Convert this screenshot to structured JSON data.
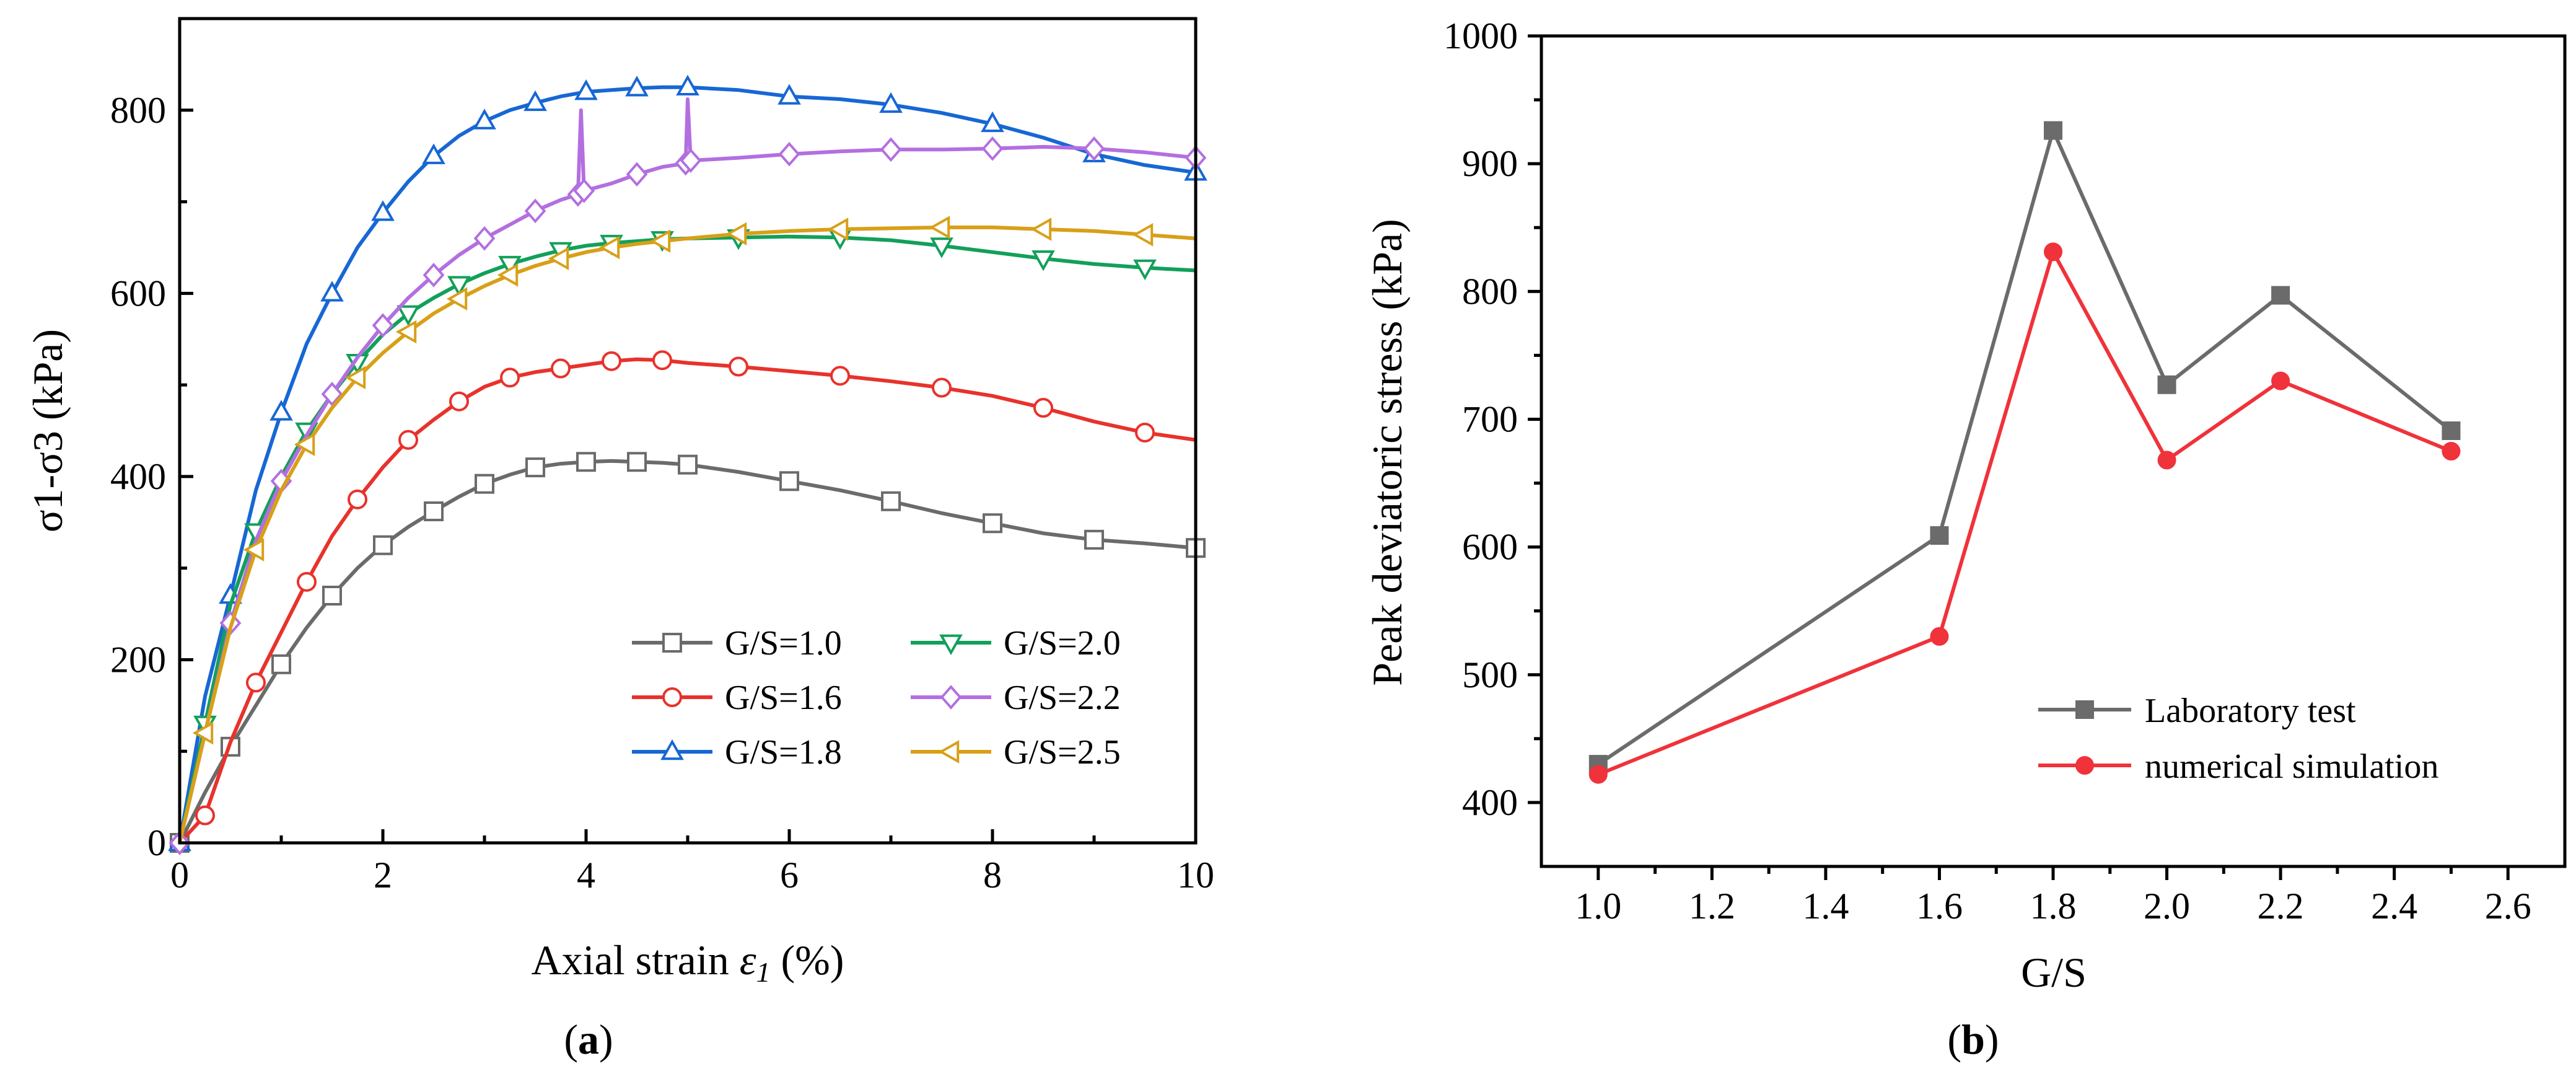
{
  "chart_data": [
    {
      "type": "line",
      "panel_label": "a",
      "title": "",
      "xlabel": "Axial strain",
      "xlabel_symbol": "ε",
      "xlabel_subscript": "1",
      "xlabel_unit": "(%)",
      "ylabel": "σ1-σ3 (kPa)",
      "xlim": [
        0,
        10
      ],
      "ylim": [
        0,
        900
      ],
      "xticks": [
        0,
        2,
        4,
        6,
        8,
        10
      ],
      "yticks": [
        0,
        200,
        400,
        600,
        800
      ],
      "legend_position": "bottom-right",
      "series": [
        {
          "name": "G/S=1.0",
          "color": "#6b6b6b",
          "marker": "square",
          "x": [
            0,
            0.25,
            0.5,
            0.75,
            1.0,
            1.25,
            1.5,
            1.75,
            2.0,
            2.25,
            2.5,
            2.75,
            3.0,
            3.25,
            3.5,
            3.75,
            4.0,
            4.25,
            4.5,
            4.75,
            5.0,
            5.5,
            6.0,
            6.5,
            7.0,
            7.5,
            8.0,
            8.5,
            9.0,
            9.5,
            10.0
          ],
          "y": [
            0,
            55,
            105,
            150,
            195,
            235,
            270,
            300,
            325,
            345,
            362,
            378,
            392,
            402,
            410,
            414,
            416,
            417,
            416,
            415,
            413,
            405,
            395,
            385,
            373,
            360,
            349,
            338,
            331,
            327,
            322
          ]
        },
        {
          "name": "G/S=1.6",
          "color": "#e8322c",
          "marker": "circle",
          "x": [
            0,
            0.25,
            0.5,
            0.75,
            1.0,
            1.25,
            1.5,
            1.75,
            2.0,
            2.25,
            2.5,
            2.75,
            3.0,
            3.25,
            3.5,
            3.75,
            4.0,
            4.25,
            4.5,
            4.75,
            5.0,
            5.5,
            6.0,
            6.5,
            7.0,
            7.5,
            8.0,
            8.5,
            9.0,
            9.5,
            10.0
          ],
          "y": [
            0,
            30,
            110,
            175,
            230,
            285,
            335,
            375,
            410,
            440,
            462,
            482,
            498,
            508,
            514,
            518,
            522,
            526,
            528,
            527,
            524,
            520,
            515,
            510,
            504,
            497,
            488,
            475,
            460,
            448,
            440
          ]
        },
        {
          "name": "G/S=1.8",
          "color": "#1767d4",
          "marker": "triangle-up",
          "x": [
            0,
            0.25,
            0.5,
            0.75,
            1.0,
            1.25,
            1.5,
            1.75,
            2.0,
            2.25,
            2.5,
            2.75,
            3.0,
            3.25,
            3.5,
            3.75,
            4.0,
            4.25,
            4.5,
            4.75,
            5.0,
            5.5,
            6.0,
            6.5,
            7.0,
            7.5,
            8.0,
            8.5,
            9.0,
            9.5,
            10.0
          ],
          "y": [
            0,
            160,
            270,
            385,
            470,
            545,
            600,
            650,
            688,
            722,
            750,
            772,
            788,
            800,
            808,
            815,
            820,
            822,
            824,
            825,
            825,
            822,
            815,
            812,
            806,
            797,
            785,
            770,
            752,
            740,
            732
          ]
        },
        {
          "name": "G/S=2.0",
          "color": "#12a05a",
          "marker": "triangle-down",
          "x": [
            0,
            0.25,
            0.5,
            0.75,
            1.0,
            1.25,
            1.5,
            1.75,
            2.0,
            2.25,
            2.5,
            2.75,
            3.0,
            3.25,
            3.5,
            3.75,
            4.0,
            4.25,
            4.5,
            4.75,
            5.0,
            5.5,
            6.0,
            6.5,
            7.0,
            7.5,
            8.0,
            8.5,
            9.0,
            9.5,
            10.0
          ],
          "y": [
            0,
            130,
            260,
            340,
            400,
            450,
            490,
            525,
            555,
            578,
            595,
            610,
            622,
            632,
            640,
            647,
            652,
            655,
            657,
            659,
            660,
            661,
            662,
            661,
            658,
            652,
            645,
            638,
            632,
            628,
            625
          ]
        },
        {
          "name": "G/S=2.2",
          "color": "#b36fe0",
          "marker": "diamond",
          "x": [
            0,
            0.25,
            0.5,
            0.75,
            1.0,
            1.25,
            1.5,
            1.75,
            2.0,
            2.25,
            2.5,
            2.75,
            3.0,
            3.25,
            3.5,
            3.75,
            3.92,
            3.95,
            3.98,
            4.25,
            4.5,
            4.75,
            4.98,
            5.0,
            5.03,
            5.5,
            6.0,
            6.5,
            7.0,
            7.5,
            8.0,
            8.5,
            9.0,
            9.5,
            10.0
          ],
          "y": [
            0,
            120,
            240,
            330,
            395,
            445,
            490,
            530,
            565,
            595,
            620,
            642,
            660,
            675,
            690,
            702,
            708,
            800,
            712,
            720,
            730,
            738,
            742,
            812,
            745,
            748,
            752,
            755,
            757,
            757,
            758,
            760,
            758,
            754,
            748
          ]
        },
        {
          "name": "G/S=2.5",
          "color": "#d8a018",
          "marker": "triangle-left",
          "x": [
            0,
            0.25,
            0.5,
            0.75,
            1.0,
            1.25,
            1.5,
            1.75,
            2.0,
            2.25,
            2.5,
            2.75,
            3.0,
            3.25,
            3.5,
            3.75,
            4.0,
            4.25,
            4.5,
            4.75,
            5.0,
            5.5,
            6.0,
            6.5,
            7.0,
            7.5,
            8.0,
            8.5,
            9.0,
            9.5,
            10.0
          ],
          "y": [
            0,
            120,
            235,
            320,
            385,
            435,
            475,
            508,
            535,
            558,
            578,
            594,
            608,
            620,
            630,
            638,
            645,
            650,
            654,
            657,
            660,
            665,
            668,
            670,
            671,
            672,
            672,
            670,
            668,
            664,
            660
          ]
        }
      ]
    },
    {
      "type": "line",
      "panel_label": "b",
      "title": "",
      "xlabel": "G/S",
      "ylabel": "Peak deviatoric stress (kPa)",
      "xlim": [
        0.9,
        2.7
      ],
      "ylim": [
        350,
        1000
      ],
      "xticks": [
        "1.0",
        "1.2",
        "1.4",
        "1.6",
        "1.8",
        "2.0",
        "2.2",
        "2.4",
        "2.6"
      ],
      "yticks": [
        400,
        500,
        600,
        700,
        800,
        900,
        1000
      ],
      "legend_position": "bottom-right",
      "x": [
        1.0,
        1.6,
        1.8,
        2.0,
        2.2,
        2.5
      ],
      "series": [
        {
          "name": "Laboratory test",
          "color": "#6b6b6b",
          "marker": "square",
          "values": [
            430,
            609,
            926,
            727,
            797,
            691
          ]
        },
        {
          "name": "numerical simulation",
          "color": "#f0323a",
          "marker": "circle",
          "values": [
            422,
            530,
            831,
            668,
            730,
            675
          ]
        }
      ]
    }
  ]
}
